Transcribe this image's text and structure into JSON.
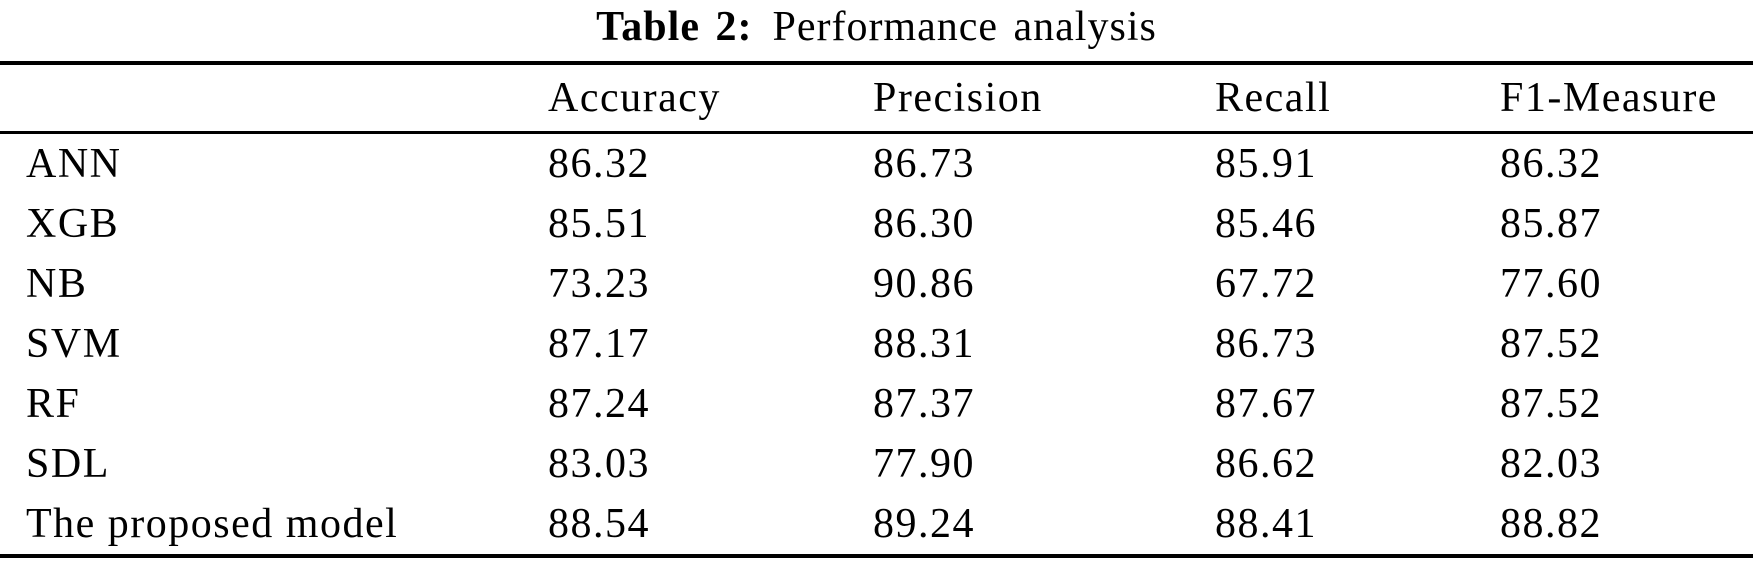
{
  "title": {
    "label": "Table 2:",
    "text": "Performance analysis"
  },
  "table": {
    "columns": [
      "",
      "Accuracy",
      "Precision",
      "Recall",
      "F1-Measure"
    ],
    "rows": [
      {
        "model": "ANN",
        "values": [
          "86.32",
          "86.73",
          "85.91",
          "86.32"
        ]
      },
      {
        "model": "XGB",
        "values": [
          "85.51",
          "86.30",
          "85.46",
          "85.87"
        ]
      },
      {
        "model": "NB",
        "values": [
          "73.23",
          "90.86",
          "67.72",
          "77.60"
        ]
      },
      {
        "model": "SVM",
        "values": [
          "87.17",
          "88.31",
          "86.73",
          "87.52"
        ]
      },
      {
        "model": "RF",
        "values": [
          "87.24",
          "87.37",
          "87.67",
          "87.52"
        ]
      },
      {
        "model": "SDL",
        "values": [
          "83.03",
          "77.90",
          "86.62",
          "82.03"
        ]
      },
      {
        "model": "The proposed model",
        "values": [
          "88.54",
          "89.24",
          "88.41",
          "88.82"
        ]
      }
    ]
  }
}
